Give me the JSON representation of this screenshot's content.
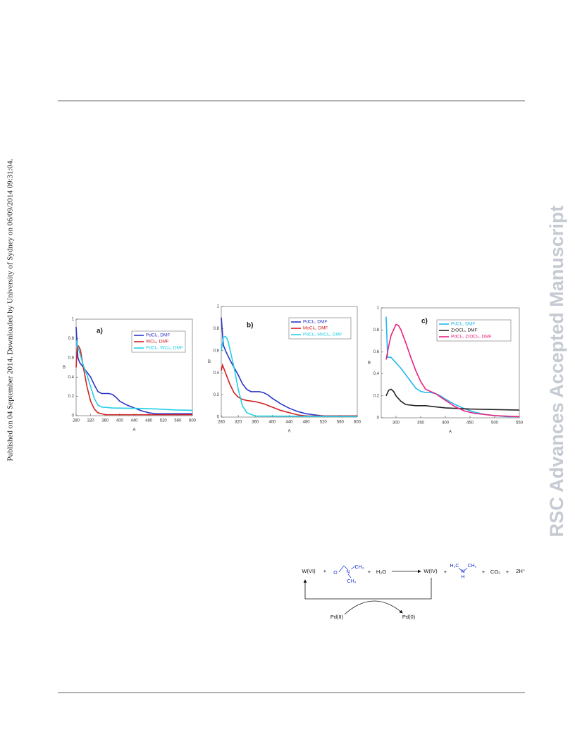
{
  "side_note": "Published on 04 September 2014. Downloaded by University of Sydney on 06/09/2014 09:31:04.",
  "watermark": "RSC Advances Accepted Manuscript",
  "chart_data": [
    {
      "type": "line",
      "annotation": "a)",
      "x_label": "A",
      "y_label": "B",
      "xlim": [
        280,
        600
      ],
      "xticks": [
        280,
        320,
        360,
        400,
        440,
        480,
        520,
        560,
        600
      ],
      "ylim": [
        0,
        1
      ],
      "yticks": [
        0,
        0.2,
        0.4,
        0.6,
        0.8,
        1
      ],
      "series": [
        {
          "name": "PdCl₂, DMF",
          "color": "#2b35c8",
          "x": [
            280,
            285,
            290,
            300,
            310,
            320,
            330,
            340,
            350,
            360,
            370,
            380,
            390,
            400,
            420,
            440,
            460,
            480,
            500,
            520,
            540,
            560,
            580,
            600
          ],
          "values": [
            0.92,
            0.6,
            0.55,
            0.5,
            0.45,
            0.4,
            0.32,
            0.25,
            0.23,
            0.23,
            0.23,
            0.22,
            0.19,
            0.15,
            0.11,
            0.08,
            0.05,
            0.03,
            0.02,
            0.02,
            0.02,
            0.02,
            0.02,
            0.02
          ]
        },
        {
          "name": "WCl₆, DMF",
          "color": "#d42020",
          "x": [
            280,
            283,
            287,
            292,
            300,
            310,
            320,
            330,
            340,
            360,
            400,
            500,
            600
          ],
          "values": [
            0.5,
            0.7,
            0.72,
            0.68,
            0.5,
            0.3,
            0.15,
            0.07,
            0.03,
            0.01,
            0.01,
            0.01,
            0.01
          ]
        },
        {
          "name": "PdCl₂, WCl₆, DMF",
          "color": "#22d0e8",
          "x": [
            280,
            290,
            300,
            310,
            320,
            330,
            340,
            350,
            380,
            450,
            500,
            550,
            600
          ],
          "values": [
            0.78,
            0.65,
            0.52,
            0.42,
            0.3,
            0.18,
            0.11,
            0.09,
            0.08,
            0.075,
            0.07,
            0.06,
            0.055
          ]
        }
      ]
    },
    {
      "type": "line",
      "annotation": "b)",
      "x_label": "A",
      "y_label": "B",
      "xlim": [
        280,
        600
      ],
      "xticks": [
        280,
        320,
        360,
        400,
        440,
        480,
        520,
        560,
        600
      ],
      "ylim": [
        0,
        1
      ],
      "yticks": [
        0,
        0.2,
        0.4,
        0.6,
        0.8,
        1
      ],
      "series": [
        {
          "name": "PdCl₂, DMF",
          "color": "#2b35c8",
          "x": [
            280,
            285,
            290,
            300,
            310,
            320,
            330,
            340,
            350,
            360,
            370,
            380,
            390,
            400,
            420,
            440,
            460,
            480,
            500,
            520,
            560,
            600
          ],
          "values": [
            0.9,
            0.65,
            0.6,
            0.52,
            0.45,
            0.38,
            0.3,
            0.25,
            0.23,
            0.23,
            0.23,
            0.22,
            0.2,
            0.17,
            0.12,
            0.08,
            0.05,
            0.03,
            0.02,
            0.01,
            0.01,
            0.01
          ]
        },
        {
          "name": "MoCl₅, DMF",
          "color": "#d42020",
          "x": [
            280,
            283,
            290,
            300,
            310,
            320,
            330,
            340,
            360,
            380,
            400,
            420,
            440,
            460,
            480,
            600
          ],
          "values": [
            0.42,
            0.47,
            0.4,
            0.3,
            0.22,
            0.18,
            0.16,
            0.15,
            0.14,
            0.12,
            0.09,
            0.06,
            0.04,
            0.02,
            0.01,
            0.01
          ]
        },
        {
          "name": "PdCl₂, MoCl₅, DMF",
          "color": "#22d0e8",
          "x": [
            280,
            285,
            290,
            295,
            300,
            310,
            320,
            330,
            340,
            360,
            600
          ],
          "values": [
            0.6,
            0.72,
            0.73,
            0.7,
            0.62,
            0.45,
            0.25,
            0.1,
            0.04,
            0.01,
            0.005
          ]
        }
      ]
    },
    {
      "type": "line",
      "annotation": "c)",
      "x_label": "A",
      "y_label": "B",
      "xlim": [
        270,
        550
      ],
      "xticks": [
        300,
        350,
        400,
        450,
        500,
        550
      ],
      "ylim": [
        0,
        1
      ],
      "yticks": [
        0,
        0.2,
        0.4,
        0.6,
        0.8,
        1
      ],
      "series": [
        {
          "name": "PdCl₂, DMF",
          "color": "#22b8ee",
          "x": [
            280,
            283,
            290,
            300,
            310,
            320,
            330,
            340,
            350,
            360,
            370,
            380,
            390,
            400,
            420,
            440,
            460,
            480,
            500,
            525,
            550
          ],
          "values": [
            0.92,
            0.55,
            0.55,
            0.5,
            0.45,
            0.39,
            0.33,
            0.27,
            0.24,
            0.23,
            0.23,
            0.22,
            0.2,
            0.17,
            0.12,
            0.08,
            0.05,
            0.03,
            0.02,
            0.01,
            0.01
          ]
        },
        {
          "name": "ZrOCl₂, DMF",
          "color": "#222222",
          "x": [
            280,
            285,
            290,
            295,
            300,
            310,
            320,
            340,
            360,
            380,
            400,
            450,
            500,
            550
          ],
          "values": [
            0.2,
            0.25,
            0.26,
            0.24,
            0.2,
            0.15,
            0.12,
            0.11,
            0.11,
            0.1,
            0.09,
            0.08,
            0.075,
            0.07
          ]
        },
        {
          "name": "PdCl₂, ZrOCl₂, DMF",
          "color": "#e8207f",
          "x": [
            280,
            285,
            290,
            300,
            305,
            310,
            320,
            330,
            340,
            350,
            360,
            370,
            380,
            400,
            420,
            440,
            460,
            480,
            500,
            550
          ],
          "values": [
            0.53,
            0.65,
            0.75,
            0.85,
            0.84,
            0.8,
            0.68,
            0.55,
            0.43,
            0.33,
            0.26,
            0.24,
            0.22,
            0.16,
            0.1,
            0.06,
            0.04,
            0.03,
            0.02,
            0.01
          ]
        }
      ]
    }
  ],
  "scheme": {
    "w6": "W(VI)",
    "plus": [
      "+",
      "+",
      "+",
      "+",
      "+"
    ],
    "dmf_o": "O",
    "dmf_n": "N",
    "dmf_ch3": [
      "CH₃",
      "CH₃"
    ],
    "water": "H₂O",
    "w4": "W(IV)",
    "amine_h3c": "H₃C",
    "amine_ch3": "CH₃",
    "amine_n": "N",
    "amine_h": "H",
    "co2": "CO₂",
    "protons": "2H⁺",
    "pd2": "Pd(II)",
    "pd0": "Pd(0)"
  }
}
